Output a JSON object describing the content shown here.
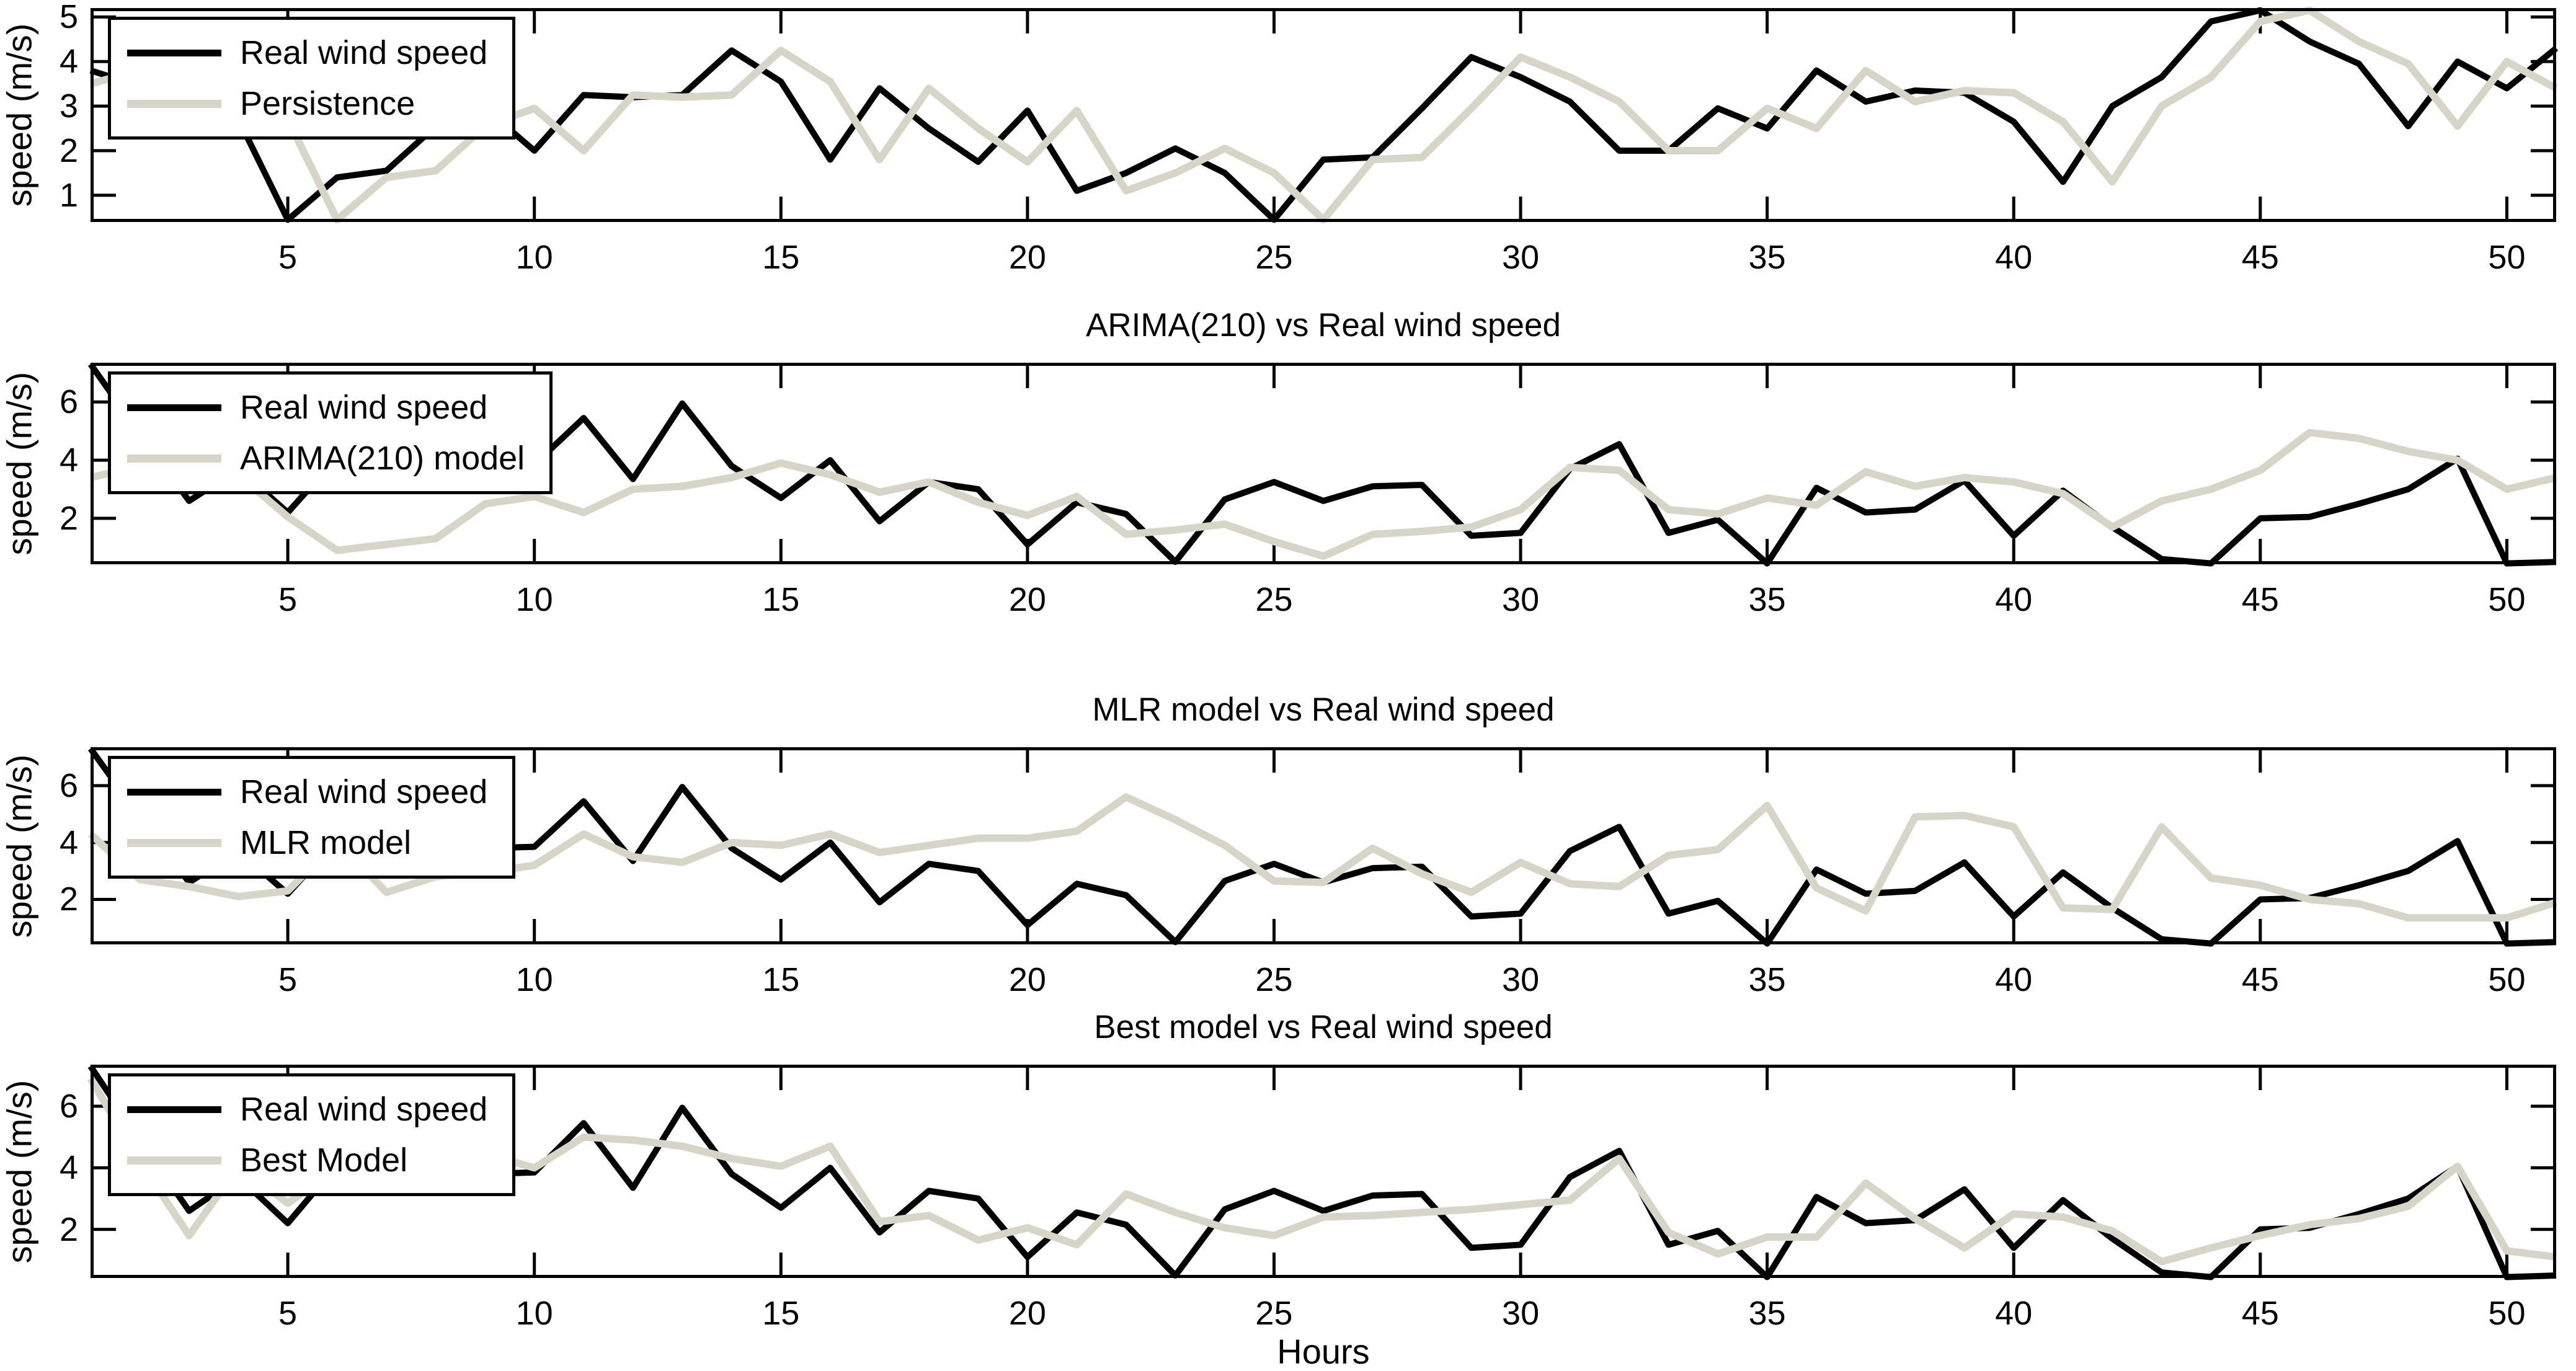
{
  "figure": {
    "xlabel": "Hours",
    "ylabel": "speed (m/s)",
    "background_color": "#ffffff",
    "axis_color": "#000000",
    "real_line_color": "#000000",
    "model_line_color": "#d7d4c8"
  },
  "chart_data": [
    {
      "type": "line",
      "title": "",
      "ylabel": "speed (m/s)",
      "xlabel": "",
      "xlim": [
        1,
        51
      ],
      "ylim": [
        0.4,
        5.2
      ],
      "xticks": [
        5,
        10,
        15,
        20,
        25,
        30,
        35,
        40,
        45,
        50
      ],
      "yticks": [
        1,
        2,
        3,
        4,
        5
      ],
      "grid": false,
      "legend_position": "top-left",
      "x": [
        1,
        2,
        3,
        4,
        5,
        6,
        7,
        8,
        9,
        10,
        11,
        12,
        13,
        14,
        15,
        16,
        17,
        18,
        19,
        20,
        21,
        22,
        23,
        24,
        25,
        26,
        27,
        28,
        29,
        30,
        31,
        32,
        33,
        34,
        35,
        36,
        37,
        38,
        39,
        40,
        41,
        42,
        43,
        44,
        45,
        46,
        47,
        48,
        49,
        50,
        51
      ],
      "series": [
        {
          "name": "Real wind speed",
          "color": "#000000",
          "values": [
            3.8,
            3.45,
            3.3,
            2.7,
            0.45,
            1.4,
            1.55,
            2.55,
            2.95,
            2.0,
            3.25,
            3.2,
            3.25,
            4.25,
            3.55,
            1.8,
            3.4,
            2.5,
            1.75,
            2.9,
            1.1,
            1.5,
            2.05,
            1.5,
            0.45,
            1.8,
            1.85,
            2.95,
            4.1,
            3.65,
            3.1,
            2.0,
            2.0,
            2.95,
            2.5,
            3.8,
            3.1,
            3.35,
            3.3,
            2.65,
            1.3,
            3.0,
            3.65,
            4.9,
            5.15,
            4.45,
            3.95,
            2.55,
            4.0,
            3.4,
            4.3
          ]
        },
        {
          "name": "Persistence",
          "color": "#d7d4c8",
          "values": [
            3.5,
            3.8,
            3.45,
            3.3,
            2.7,
            0.45,
            1.4,
            1.55,
            2.55,
            2.95,
            2.0,
            3.25,
            3.2,
            3.25,
            4.25,
            3.55,
            1.8,
            3.4,
            2.5,
            1.75,
            2.9,
            1.1,
            1.5,
            2.05,
            1.5,
            0.45,
            1.8,
            1.85,
            2.95,
            4.1,
            3.65,
            3.1,
            2.0,
            2.0,
            2.95,
            2.5,
            3.8,
            3.1,
            3.35,
            3.3,
            2.65,
            1.3,
            3.0,
            3.65,
            4.9,
            5.15,
            4.45,
            3.95,
            2.55,
            4.0,
            3.4
          ]
        }
      ]
    },
    {
      "type": "line",
      "title": "ARIMA(210) vs Real wind speed",
      "ylabel": "speed (m/s)",
      "xlabel": "",
      "xlim": [
        1,
        51
      ],
      "ylim": [
        0.42,
        7.35
      ],
      "xticks": [
        5,
        10,
        15,
        20,
        25,
        30,
        35,
        40,
        45,
        50
      ],
      "yticks": [
        2,
        4,
        6
      ],
      "grid": false,
      "legend_position": "top-left",
      "x": [
        1,
        2,
        3,
        4,
        5,
        6,
        7,
        8,
        9,
        10,
        11,
        12,
        13,
        14,
        15,
        16,
        17,
        18,
        19,
        20,
        21,
        22,
        23,
        24,
        25,
        26,
        27,
        28,
        29,
        30,
        31,
        32,
        33,
        34,
        35,
        36,
        37,
        38,
        39,
        40,
        41,
        42,
        43,
        44,
        45,
        46,
        47,
        48,
        49,
        50,
        51
      ],
      "series": [
        {
          "name": "Real wind speed",
          "color": "#000000",
          "values": [
            7.3,
            4.9,
            2.6,
            3.7,
            2.2,
            4.1,
            4.05,
            3.9,
            3.8,
            3.85,
            5.45,
            3.35,
            5.95,
            3.8,
            2.7,
            4.0,
            1.9,
            3.25,
            3.0,
            1.1,
            2.55,
            2.15,
            0.5,
            2.65,
            3.25,
            2.6,
            3.1,
            3.15,
            1.4,
            1.5,
            3.7,
            4.55,
            1.5,
            1.95,
            0.45,
            3.05,
            2.2,
            2.3,
            3.3,
            1.4,
            2.95,
            1.7,
            0.6,
            0.45,
            2.0,
            2.05,
            2.5,
            3.0,
            4.05,
            0.45,
            0.5
          ]
        },
        {
          "name": "ARIMA(210) model",
          "color": "#d7d4c8",
          "values": [
            3.4,
            3.8,
            3.6,
            3.5,
            2.05,
            0.9,
            1.1,
            1.3,
            2.5,
            2.75,
            2.2,
            3.0,
            3.1,
            3.4,
            3.9,
            3.5,
            2.9,
            3.25,
            2.55,
            2.1,
            2.75,
            1.45,
            1.6,
            1.8,
            1.2,
            0.7,
            1.45,
            1.55,
            1.7,
            2.3,
            3.75,
            3.65,
            2.3,
            2.15,
            2.7,
            2.45,
            3.6,
            3.1,
            3.4,
            3.25,
            2.85,
            1.7,
            2.6,
            3.0,
            3.65,
            4.95,
            4.75,
            4.3,
            4.0,
            3.0,
            3.4
          ]
        }
      ]
    },
    {
      "type": "line",
      "title": "MLR model vs Real wind speed",
      "ylabel": "speed (m/s)",
      "xlabel": "",
      "xlim": [
        1,
        51
      ],
      "ylim": [
        0.42,
        7.35
      ],
      "xticks": [
        5,
        10,
        15,
        20,
        25,
        30,
        35,
        40,
        45,
        50
      ],
      "yticks": [
        2,
        4,
        6
      ],
      "grid": false,
      "legend_position": "top-left",
      "x": [
        1,
        2,
        3,
        4,
        5,
        6,
        7,
        8,
        9,
        10,
        11,
        12,
        13,
        14,
        15,
        16,
        17,
        18,
        19,
        20,
        21,
        22,
        23,
        24,
        25,
        26,
        27,
        28,
        29,
        30,
        31,
        32,
        33,
        34,
        35,
        36,
        37,
        38,
        39,
        40,
        41,
        42,
        43,
        44,
        45,
        46,
        47,
        48,
        49,
        50,
        51
      ],
      "series": [
        {
          "name": "Real wind speed",
          "color": "#000000",
          "values": [
            7.3,
            4.9,
            2.6,
            3.7,
            2.2,
            4.1,
            4.05,
            3.9,
            3.8,
            3.85,
            5.45,
            3.35,
            5.95,
            3.8,
            2.7,
            4.0,
            1.9,
            3.25,
            3.0,
            1.1,
            2.55,
            2.15,
            0.5,
            2.65,
            3.25,
            2.6,
            3.1,
            3.15,
            1.4,
            1.5,
            3.7,
            4.55,
            1.5,
            1.95,
            0.45,
            3.05,
            2.2,
            2.3,
            3.3,
            1.4,
            2.95,
            1.7,
            0.6,
            0.45,
            2.0,
            2.05,
            2.5,
            3.0,
            4.05,
            0.45,
            0.5
          ]
        },
        {
          "name": "MLR model",
          "color": "#d7d4c8",
          "values": [
            4.3,
            2.7,
            2.45,
            2.1,
            2.3,
            4.05,
            2.25,
            2.8,
            2.95,
            3.2,
            4.3,
            3.5,
            3.3,
            4.0,
            3.9,
            4.3,
            3.65,
            3.9,
            4.15,
            4.15,
            4.4,
            5.6,
            4.8,
            3.9,
            2.65,
            2.6,
            3.8,
            2.9,
            2.25,
            3.3,
            2.55,
            2.45,
            3.55,
            3.75,
            5.3,
            2.4,
            1.6,
            4.9,
            4.95,
            4.55,
            1.7,
            1.65,
            4.55,
            2.75,
            2.5,
            2.0,
            1.85,
            1.35,
            1.35,
            1.35,
            1.9
          ]
        }
      ]
    },
    {
      "type": "line",
      "title": "Best model vs Real wind speed",
      "ylabel": "speed (m/s)",
      "xlabel": "Hours",
      "xlim": [
        1,
        51
      ],
      "ylim": [
        0.42,
        7.35
      ],
      "xticks": [
        5,
        10,
        15,
        20,
        25,
        30,
        35,
        40,
        45,
        50
      ],
      "yticks": [
        2,
        4,
        6
      ],
      "grid": false,
      "legend_position": "top-left",
      "x": [
        1,
        2,
        3,
        4,
        5,
        6,
        7,
        8,
        9,
        10,
        11,
        12,
        13,
        14,
        15,
        16,
        17,
        18,
        19,
        20,
        21,
        22,
        23,
        24,
        25,
        26,
        27,
        28,
        29,
        30,
        31,
        32,
        33,
        34,
        35,
        36,
        37,
        38,
        39,
        40,
        41,
        42,
        43,
        44,
        45,
        46,
        47,
        48,
        49,
        50,
        51
      ],
      "series": [
        {
          "name": "Real wind speed",
          "color": "#000000",
          "values": [
            7.3,
            4.9,
            2.6,
            3.7,
            2.2,
            4.1,
            4.05,
            3.9,
            3.8,
            3.85,
            5.45,
            3.35,
            5.95,
            3.8,
            2.7,
            4.0,
            1.9,
            3.25,
            3.0,
            1.1,
            2.55,
            2.15,
            0.5,
            2.65,
            3.25,
            2.6,
            3.1,
            3.15,
            1.4,
            1.5,
            3.7,
            4.55,
            1.5,
            1.95,
            0.45,
            3.05,
            2.2,
            2.3,
            3.3,
            1.4,
            2.95,
            1.7,
            0.6,
            0.45,
            2.0,
            2.05,
            2.5,
            3.0,
            4.05,
            0.45,
            0.5
          ]
        },
        {
          "name": "Best Model",
          "color": "#d7d4c8",
          "values": [
            6.9,
            4.2,
            1.8,
            4.05,
            2.85,
            4.0,
            3.95,
            4.3,
            4.45,
            4.0,
            5.0,
            4.9,
            4.7,
            4.3,
            4.05,
            4.7,
            2.25,
            2.45,
            1.65,
            2.05,
            1.5,
            3.15,
            2.55,
            2.05,
            1.8,
            2.4,
            2.45,
            2.55,
            2.65,
            2.8,
            2.95,
            4.3,
            1.9,
            1.2,
            1.75,
            1.75,
            3.5,
            2.35,
            1.4,
            2.5,
            2.4,
            1.95,
            0.95,
            1.4,
            1.8,
            2.15,
            2.35,
            2.75,
            4.05,
            1.3,
            1.1
          ]
        }
      ]
    }
  ]
}
